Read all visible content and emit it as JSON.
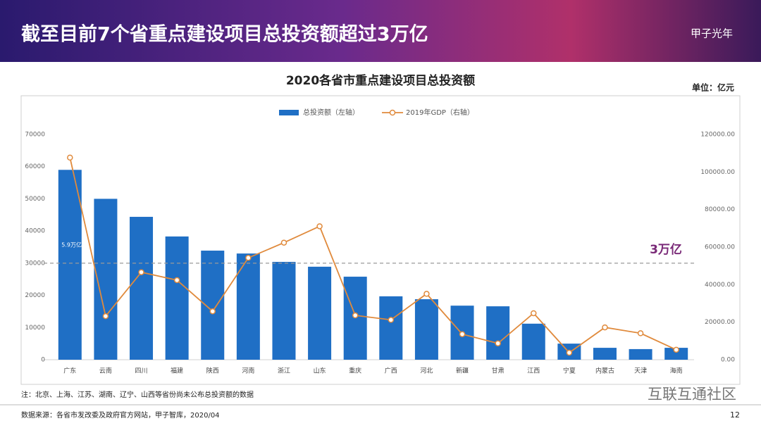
{
  "header": {
    "title": "截至目前7个省重点建设项目总投资额超过3万亿",
    "logo": "甲子光年"
  },
  "chart_data": {
    "type": "bar",
    "title": "2020各省市重点建设项目总投资额",
    "unit": "单位：亿元",
    "categories": [
      "广东",
      "云南",
      "四川",
      "福建",
      "陕西",
      "河南",
      "浙江",
      "山东",
      "重庆",
      "广西",
      "河北",
      "新疆",
      "甘肃",
      "江西",
      "宁夏",
      "内蒙古",
      "天津",
      "海南"
    ],
    "series": [
      {
        "name": "总投资额（左轴）",
        "type": "bar",
        "color": "#1f6fc5",
        "values": [
          59000,
          50000,
          44400,
          38300,
          33900,
          33000,
          30400,
          28900,
          25800,
          19700,
          18800,
          16800,
          16600,
          11200,
          5000,
          3700,
          3300,
          3700
        ]
      },
      {
        "name": "2019年GDP（右轴）",
        "type": "line",
        "axis": "y2",
        "color": "#e08a3c",
        "values": [
          107671,
          23224,
          46616,
          42395,
          25793,
          54259,
          62352,
          71068,
          23606,
          21237,
          35104,
          13597,
          8718,
          24758,
          3748,
          17212,
          14104,
          5309
        ]
      }
    ],
    "ylim": [
      0,
      70000
    ],
    "yticks": [
      0,
      10000,
      20000,
      30000,
      40000,
      50000,
      60000,
      70000
    ],
    "y2lim": [
      0,
      120000
    ],
    "y2ticks": [
      {
        "value": 0,
        "label": "0.00"
      },
      {
        "value": 20000,
        "label": "20000.00"
      },
      {
        "value": 40000,
        "label": "40000.00"
      },
      {
        "value": 60000,
        "label": "60000.00"
      },
      {
        "value": 80000,
        "label": "80000.00"
      },
      {
        "value": 100000,
        "label": "100000.00"
      },
      {
        "value": 120000,
        "label": "120000.00"
      }
    ],
    "reference_line": {
      "value": 30000,
      "label": "3万亿",
      "color": "#9a9a9a"
    },
    "annotations": [
      {
        "text": "5.9万亿"
      }
    ],
    "legend": "top"
  },
  "footer": {
    "note": "注：北京、上海、江苏、湖南、辽宁、山西等省份尚未公布总投资额的数据",
    "source": "数据来源：各省市发改委及政府官方网站，甲子智库，2020/04",
    "page": "12",
    "watermark": "互联互通社区"
  }
}
